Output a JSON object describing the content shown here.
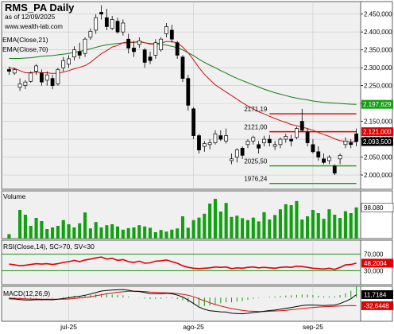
{
  "header": {
    "title": "RMS_PA Daily",
    "subtitle": "as of 12/09/2025",
    "watermark": "www.wealth-lab.com"
  },
  "colors": {
    "panel_bg": "#f0f0f0",
    "axis_bg": "#ffffff",
    "grid": "#c8c8c8",
    "border": "#606060",
    "candle": "#000000",
    "ema21": "#d01010",
    "ema70": "#108010",
    "volume": "#10a010",
    "rsi": "#e00000",
    "rsi_level": "#109010",
    "macd": "#000000",
    "signal": "#d01010",
    "hist": "#10a010",
    "level_red": "#e00000",
    "level_green": "#10a010",
    "tag_price_bg": "#000000",
    "tag_ema70_bg": "#10a010",
    "tag_red_bg": "#e00000"
  },
  "chart_data": {
    "type": "candlestick",
    "title": "RMS_PA Daily",
    "subtitle": "as of 12/09/2025",
    "x_labels": [
      {
        "i": 11,
        "text": "jul-25"
      },
      {
        "i": 34,
        "text": "ago-25"
      },
      {
        "i": 56,
        "text": "sep-25"
      }
    ],
    "price_axis": {
      "ylim": [
        1960,
        2485
      ],
      "ticks": [
        {
          "v": 2450,
          "text": "2.450,000"
        },
        {
          "v": 2400,
          "text": "2.400,000"
        },
        {
          "v": 2350,
          "text": "2.350,000"
        },
        {
          "v": 2300,
          "text": "2.300,000"
        },
        {
          "v": 2250,
          "text": "2.250,000"
        },
        {
          "v": 2200,
          "text": "2.200,000"
        },
        {
          "v": 2150,
          "text": "2.150,000"
        },
        {
          "v": 2100,
          "text": "2.100,000"
        },
        {
          "v": 2050,
          "text": "2.050,000"
        },
        {
          "v": 2000,
          "text": "2.000,000"
        }
      ]
    },
    "ohlc": [
      [
        2295,
        2303,
        2280,
        2290
      ],
      [
        2285,
        2300,
        2280,
        2295
      ],
      [
        2245,
        2270,
        2235,
        2255
      ],
      [
        2250,
        2265,
        2240,
        2260
      ],
      [
        2262,
        2290,
        2258,
        2285
      ],
      [
        2290,
        2310,
        2280,
        2305
      ],
      [
        2285,
        2295,
        2250,
        2260
      ],
      [
        2265,
        2290,
        2250,
        2280
      ],
      [
        2270,
        2280,
        2240,
        2250
      ],
      [
        2255,
        2300,
        2250,
        2295
      ],
      [
        2300,
        2330,
        2290,
        2320
      ],
      [
        2310,
        2335,
        2300,
        2325
      ],
      [
        2330,
        2360,
        2320,
        2350
      ],
      [
        2345,
        2370,
        2325,
        2335
      ],
      [
        2340,
        2385,
        2330,
        2380
      ],
      [
        2385,
        2410,
        2378,
        2402
      ],
      [
        2405,
        2450,
        2395,
        2440
      ],
      [
        2455,
        2475,
        2435,
        2450
      ],
      [
        2440,
        2465,
        2405,
        2415
      ],
      [
        2410,
        2445,
        2405,
        2435
      ],
      [
        2430,
        2440,
        2395,
        2400
      ],
      [
        2400,
        2435,
        2390,
        2425
      ],
      [
        2380,
        2395,
        2340,
        2355
      ],
      [
        2355,
        2375,
        2330,
        2345
      ],
      [
        2365,
        2385,
        2355,
        2375
      ],
      [
        2350,
        2355,
        2300,
        2315
      ],
      [
        2330,
        2345,
        2310,
        2320
      ],
      [
        2335,
        2380,
        2325,
        2370
      ],
      [
        2350,
        2385,
        2345,
        2380
      ],
      [
        2395,
        2425,
        2385,
        2415
      ],
      [
        2405,
        2420,
        2370,
        2380
      ],
      [
        2370,
        2375,
        2325,
        2335
      ],
      [
        2330,
        2335,
        2260,
        2270
      ],
      [
        2270,
        2280,
        2180,
        2195
      ],
      [
        2185,
        2190,
        2100,
        2110
      ],
      [
        2110,
        2115,
        2060,
        2070
      ],
      [
        2080,
        2095,
        2065,
        2088
      ],
      [
        2085,
        2100,
        2072,
        2090
      ],
      [
        2090,
        2125,
        2085,
        2115
      ],
      [
        2110,
        2125,
        2095,
        2100
      ],
      [
        2095,
        2130,
        2088,
        2110
      ],
      [
        2040,
        2060,
        2030,
        2045
      ],
      [
        2050,
        2075,
        2035,
        2070
      ],
      [
        2075,
        2080,
        2045,
        2055
      ],
      [
        2085,
        2100,
        2075,
        2095
      ],
      [
        2095,
        2110,
        2085,
        2105
      ],
      [
        2085,
        2095,
        2060,
        2075
      ],
      [
        2090,
        2110,
        2080,
        2100
      ],
      [
        2100,
        2112,
        2080,
        2090
      ],
      [
        2080,
        2095,
        2070,
        2085
      ],
      [
        2085,
        2105,
        2075,
        2100
      ],
      [
        2100,
        2115,
        2090,
        2108
      ],
      [
        2100,
        2112,
        2080,
        2095
      ],
      [
        2105,
        2135,
        2100,
        2130
      ],
      [
        2150,
        2185,
        2120,
        2125
      ],
      [
        2120,
        2130,
        2080,
        2090
      ],
      [
        2085,
        2100,
        2060,
        2065
      ],
      [
        2065,
        2080,
        2040,
        2050
      ],
      [
        2045,
        2060,
        2030,
        2035
      ],
      [
        2040,
        2055,
        2030,
        2050
      ],
      [
        2025,
        2030,
        2000,
        2005
      ],
      [
        2045,
        2060,
        2030,
        2055
      ],
      [
        2085,
        2105,
        2075,
        2095
      ],
      [
        2090,
        2100,
        2075,
        2085
      ],
      [
        2115,
        2130,
        2080,
        2093.5
      ]
    ],
    "ema21": [
      2300,
      2298,
      2292,
      2286,
      2286,
      2288,
      2286,
      2286,
      2284,
      2285,
      2288,
      2292,
      2297,
      2301,
      2306,
      2315,
      2327,
      2339,
      2348,
      2358,
      2362,
      2370,
      2372,
      2371,
      2374,
      2370,
      2366,
      2367,
      2369,
      2373,
      2373,
      2369,
      2358,
      2342,
      2322,
      2300,
      2282,
      2266,
      2252,
      2242,
      2232,
      2222,
      2212,
      2202,
      2193,
      2185,
      2177,
      2171,
      2164,
      2158,
      2152,
      2147,
      2141,
      2138,
      2134,
      2130,
      2125,
      2119,
      2113,
      2108,
      2101,
      2096,
      2094,
      2093,
      2093
    ],
    "ema70": [
      2326,
      2326,
      2326,
      2327,
      2328,
      2330,
      2332,
      2333,
      2334,
      2336,
      2338,
      2340,
      2343,
      2346,
      2349,
      2353,
      2357,
      2361,
      2364,
      2366,
      2368,
      2369,
      2370,
      2371,
      2372,
      2370,
      2368,
      2367,
      2365,
      2363,
      2360,
      2356,
      2350,
      2342,
      2334,
      2324,
      2315,
      2307,
      2300,
      2292,
      2285,
      2277,
      2270,
      2264,
      2258,
      2252,
      2246,
      2240,
      2235,
      2230,
      2226,
      2222,
      2218,
      2215,
      2212,
      2210,
      2207,
      2205,
      2203,
      2202,
      2201,
      2200,
      2199,
      2198,
      2197.6
    ],
    "ema_labels": [
      "EMA(Close,21)",
      "EMA(Close,70)"
    ],
    "levels": [
      {
        "v": 2171.19,
        "text": "2171,19",
        "from": 48,
        "to": 64,
        "color": "red"
      },
      {
        "v": 2121.0,
        "text": "2121,00",
        "from": 48,
        "to": 64,
        "color": "red"
      },
      {
        "v": 2025.5,
        "text": "2025,50",
        "from": 48,
        "to": 64,
        "color": "green"
      },
      {
        "v": 1976.24,
        "text": "1976,24",
        "from": 48,
        "to": 64,
        "color": "green"
      }
    ],
    "price_tags": [
      {
        "v": 2197.629,
        "text": "2.197,629",
        "kind": "ema70"
      },
      {
        "v": 2121.0,
        "text": "2.121,000",
        "kind": "red"
      },
      {
        "v": 2093.5,
        "text": "2.093,500",
        "kind": "price"
      }
    ],
    "volume": {
      "label": "Volume",
      "last": "98.080",
      "ymax": 150000,
      "values": [
        14,
        0,
        90,
        75,
        40,
        65,
        55,
        30,
        35,
        40,
        58,
        45,
        35,
        48,
        82,
        32,
        52,
        35,
        42,
        45,
        38,
        28,
        33,
        35,
        42,
        38,
        34,
        20,
        27,
        22,
        28,
        32,
        70,
        34,
        58,
        66,
        78,
        110,
        125,
        85,
        112,
        68,
        72,
        64,
        58,
        66,
        54,
        83,
        60,
        74,
        92,
        108,
        105,
        118,
        60,
        70,
        90,
        80,
        62,
        92,
        75,
        65,
        86,
        80,
        98
      ]
    },
    "rsi": {
      "label": "RSI(Close,14), SC>70, SV<30",
      "last": "48,2004",
      "ylim": [
        0,
        100
      ],
      "levels": [
        {
          "v": 70,
          "text": "70,000"
        },
        {
          "v": 30,
          "text": "30,000"
        }
      ],
      "values": [
        46,
        44,
        42,
        43,
        45,
        47,
        46,
        47,
        45,
        47,
        50,
        52,
        55,
        52,
        56,
        58,
        61,
        63,
        58,
        60,
        55,
        57,
        52,
        50,
        53,
        48,
        49,
        53,
        54,
        56,
        52,
        48,
        42,
        38,
        36,
        35,
        36,
        37,
        39,
        38,
        39,
        35,
        37,
        36,
        38,
        39,
        37,
        38,
        37,
        36,
        38,
        39,
        38,
        41,
        40,
        38,
        36,
        35,
        34,
        36,
        33,
        38,
        44,
        45,
        48.2
      ]
    },
    "macd": {
      "label": "MACD(12,26,9)",
      "last_macd": "11,7184",
      "last_signal": "-32,6448",
      "ylim": [
        -95,
        45
      ],
      "macd": [
        -5,
        -6,
        -8,
        -10,
        -10,
        -8,
        -9,
        -8,
        -9,
        -7,
        -4,
        -1,
        3,
        5,
        9,
        14,
        20,
        26,
        28,
        30,
        31,
        32,
        29,
        25,
        24,
        20,
        16,
        15,
        15,
        17,
        15,
        10,
        2,
        -10,
        -24,
        -38,
        -47,
        -53,
        -55,
        -57,
        -58,
        -63,
        -64,
        -65,
        -63,
        -60,
        -58,
        -55,
        -52,
        -50,
        -47,
        -43,
        -40,
        -36,
        -32,
        -30,
        -30,
        -31,
        -32,
        -31,
        -30,
        -24,
        -15,
        -5,
        11.7
      ],
      "signal": [
        -2,
        -3,
        -4,
        -5,
        -6,
        -6,
        -7,
        -7,
        -7,
        -7,
        -7,
        -6,
        -4,
        -2,
        0,
        3,
        7,
        11,
        15,
        18,
        21,
        23,
        25,
        25,
        25,
        24,
        22,
        21,
        20,
        19,
        18,
        16,
        13,
        9,
        3,
        -5,
        -13,
        -21,
        -28,
        -34,
        -39,
        -44,
        -48,
        -51,
        -54,
        -55,
        -56,
        -56,
        -55,
        -54,
        -53,
        -51,
        -49,
        -47,
        -44,
        -42,
        -40,
        -38,
        -37,
        -36,
        -35,
        -34,
        -33,
        -32,
        -32.6
      ]
    }
  }
}
